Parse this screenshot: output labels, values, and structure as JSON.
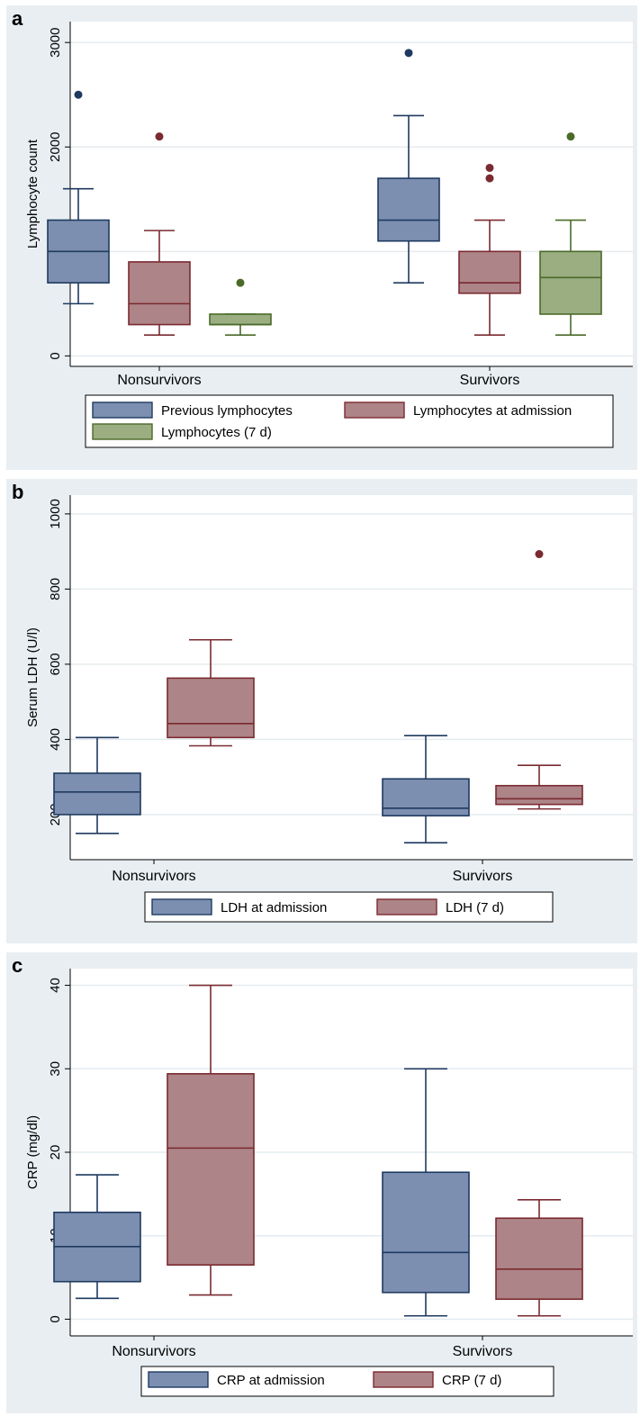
{
  "chart_data": [
    {
      "type": "box",
      "panel_label": "a",
      "ylabel": "Lymphocyte count",
      "ylim": [
        -100,
        3200
      ],
      "yticks": [
        0,
        1000,
        2000,
        3000
      ],
      "categories": [
        "Nonsurvivors",
        "Survivors"
      ],
      "grid": true,
      "legend": {
        "placement": "bottom",
        "columns": 2
      },
      "series": [
        {
          "name": "Previous lymphocytes",
          "color": "#7c8fb0",
          "edge": "#1f3a60",
          "boxes": [
            {
              "whisker_low": 500,
              "q1": 700,
              "median": 1000,
              "q3": 1300,
              "whisker_high": 1600,
              "outliers": [
                2500
              ]
            },
            {
              "whisker_low": 700,
              "q1": 1100,
              "median": 1300,
              "q3": 1700,
              "whisker_high": 2300,
              "outliers": [
                2900
              ]
            }
          ]
        },
        {
          "name": "Lymphocytes at admission",
          "color": "#ad8487",
          "edge": "#7a2a30",
          "boxes": [
            {
              "whisker_low": 200,
              "q1": 300,
              "median": 500,
              "q3": 900,
              "whisker_high": 1200,
              "outliers": [
                2100
              ]
            },
            {
              "whisker_low": 200,
              "q1": 600,
              "median": 700,
              "q3": 1000,
              "whisker_high": 1300,
              "outliers": [
                1700,
                1800
              ]
            }
          ]
        },
        {
          "name": "Lymphocytes (7 d)",
          "color": "#9aae82",
          "edge": "#4a6a28",
          "boxes": [
            {
              "whisker_low": 200,
              "q1": 300,
              "median": 300,
              "q3": 400,
              "whisker_high": 400,
              "outliers": [
                700
              ]
            },
            {
              "whisker_low": 200,
              "q1": 400,
              "median": 750,
              "q3": 1000,
              "whisker_high": 1300,
              "outliers": [
                2100
              ]
            }
          ]
        }
      ]
    },
    {
      "type": "box",
      "panel_label": "b",
      "ylabel": "Serum LDH (U/l)",
      "ylim": [
        80,
        1050
      ],
      "yticks": [
        200,
        400,
        600,
        800,
        1000
      ],
      "categories": [
        "Nonsurvivors",
        "Survivors"
      ],
      "grid": true,
      "legend": {
        "placement": "bottom",
        "columns": 2
      },
      "series": [
        {
          "name": "LDH at admission",
          "color": "#7c8fb0",
          "edge": "#1f3a60",
          "boxes": [
            {
              "whisker_low": 150,
              "q1": 200,
              "median": 260,
              "q3": 310,
              "whisker_high": 405,
              "outliers": []
            },
            {
              "whisker_low": 125,
              "q1": 197,
              "median": 217,
              "q3": 295,
              "whisker_high": 410,
              "outliers": []
            }
          ]
        },
        {
          "name": "LDH (7 d)",
          "color": "#ad8487",
          "edge": "#7a2a30",
          "boxes": [
            {
              "whisker_low": 383,
              "q1": 405,
              "median": 442,
              "q3": 563,
              "whisker_high": 665,
              "outliers": []
            },
            {
              "whisker_low": 215,
              "q1": 227,
              "median": 242,
              "q3": 277,
              "whisker_high": 331,
              "outliers": [
                893
              ]
            }
          ]
        }
      ]
    },
    {
      "type": "box",
      "panel_label": "c",
      "ylabel": "CRP (mg/dl)",
      "ylim": [
        -2,
        42
      ],
      "yticks": [
        0,
        10,
        20,
        30,
        40
      ],
      "categories": [
        "Nonsurvivors",
        "Survivors"
      ],
      "grid": true,
      "legend": {
        "placement": "bottom",
        "columns": 2
      },
      "series": [
        {
          "name": "CRP at admission",
          "color": "#7c8fb0",
          "edge": "#1f3a60",
          "boxes": [
            {
              "whisker_low": 2.5,
              "q1": 4.5,
              "median": 8.7,
              "q3": 12.8,
              "whisker_high": 17.3,
              "outliers": []
            },
            {
              "whisker_low": 0.4,
              "q1": 3.2,
              "median": 8.0,
              "q3": 17.6,
              "whisker_high": 30.0,
              "outliers": []
            }
          ]
        },
        {
          "name": "CRP (7 d)",
          "color": "#ad8487",
          "edge": "#7a2a30",
          "boxes": [
            {
              "whisker_low": 2.9,
              "q1": 6.5,
              "median": 20.5,
              "q3": 29.4,
              "whisker_high": 40.0,
              "outliers": []
            },
            {
              "whisker_low": 0.4,
              "q1": 2.4,
              "median": 6.0,
              "q3": 12.1,
              "whisker_high": 14.3,
              "outliers": []
            }
          ]
        }
      ]
    }
  ]
}
